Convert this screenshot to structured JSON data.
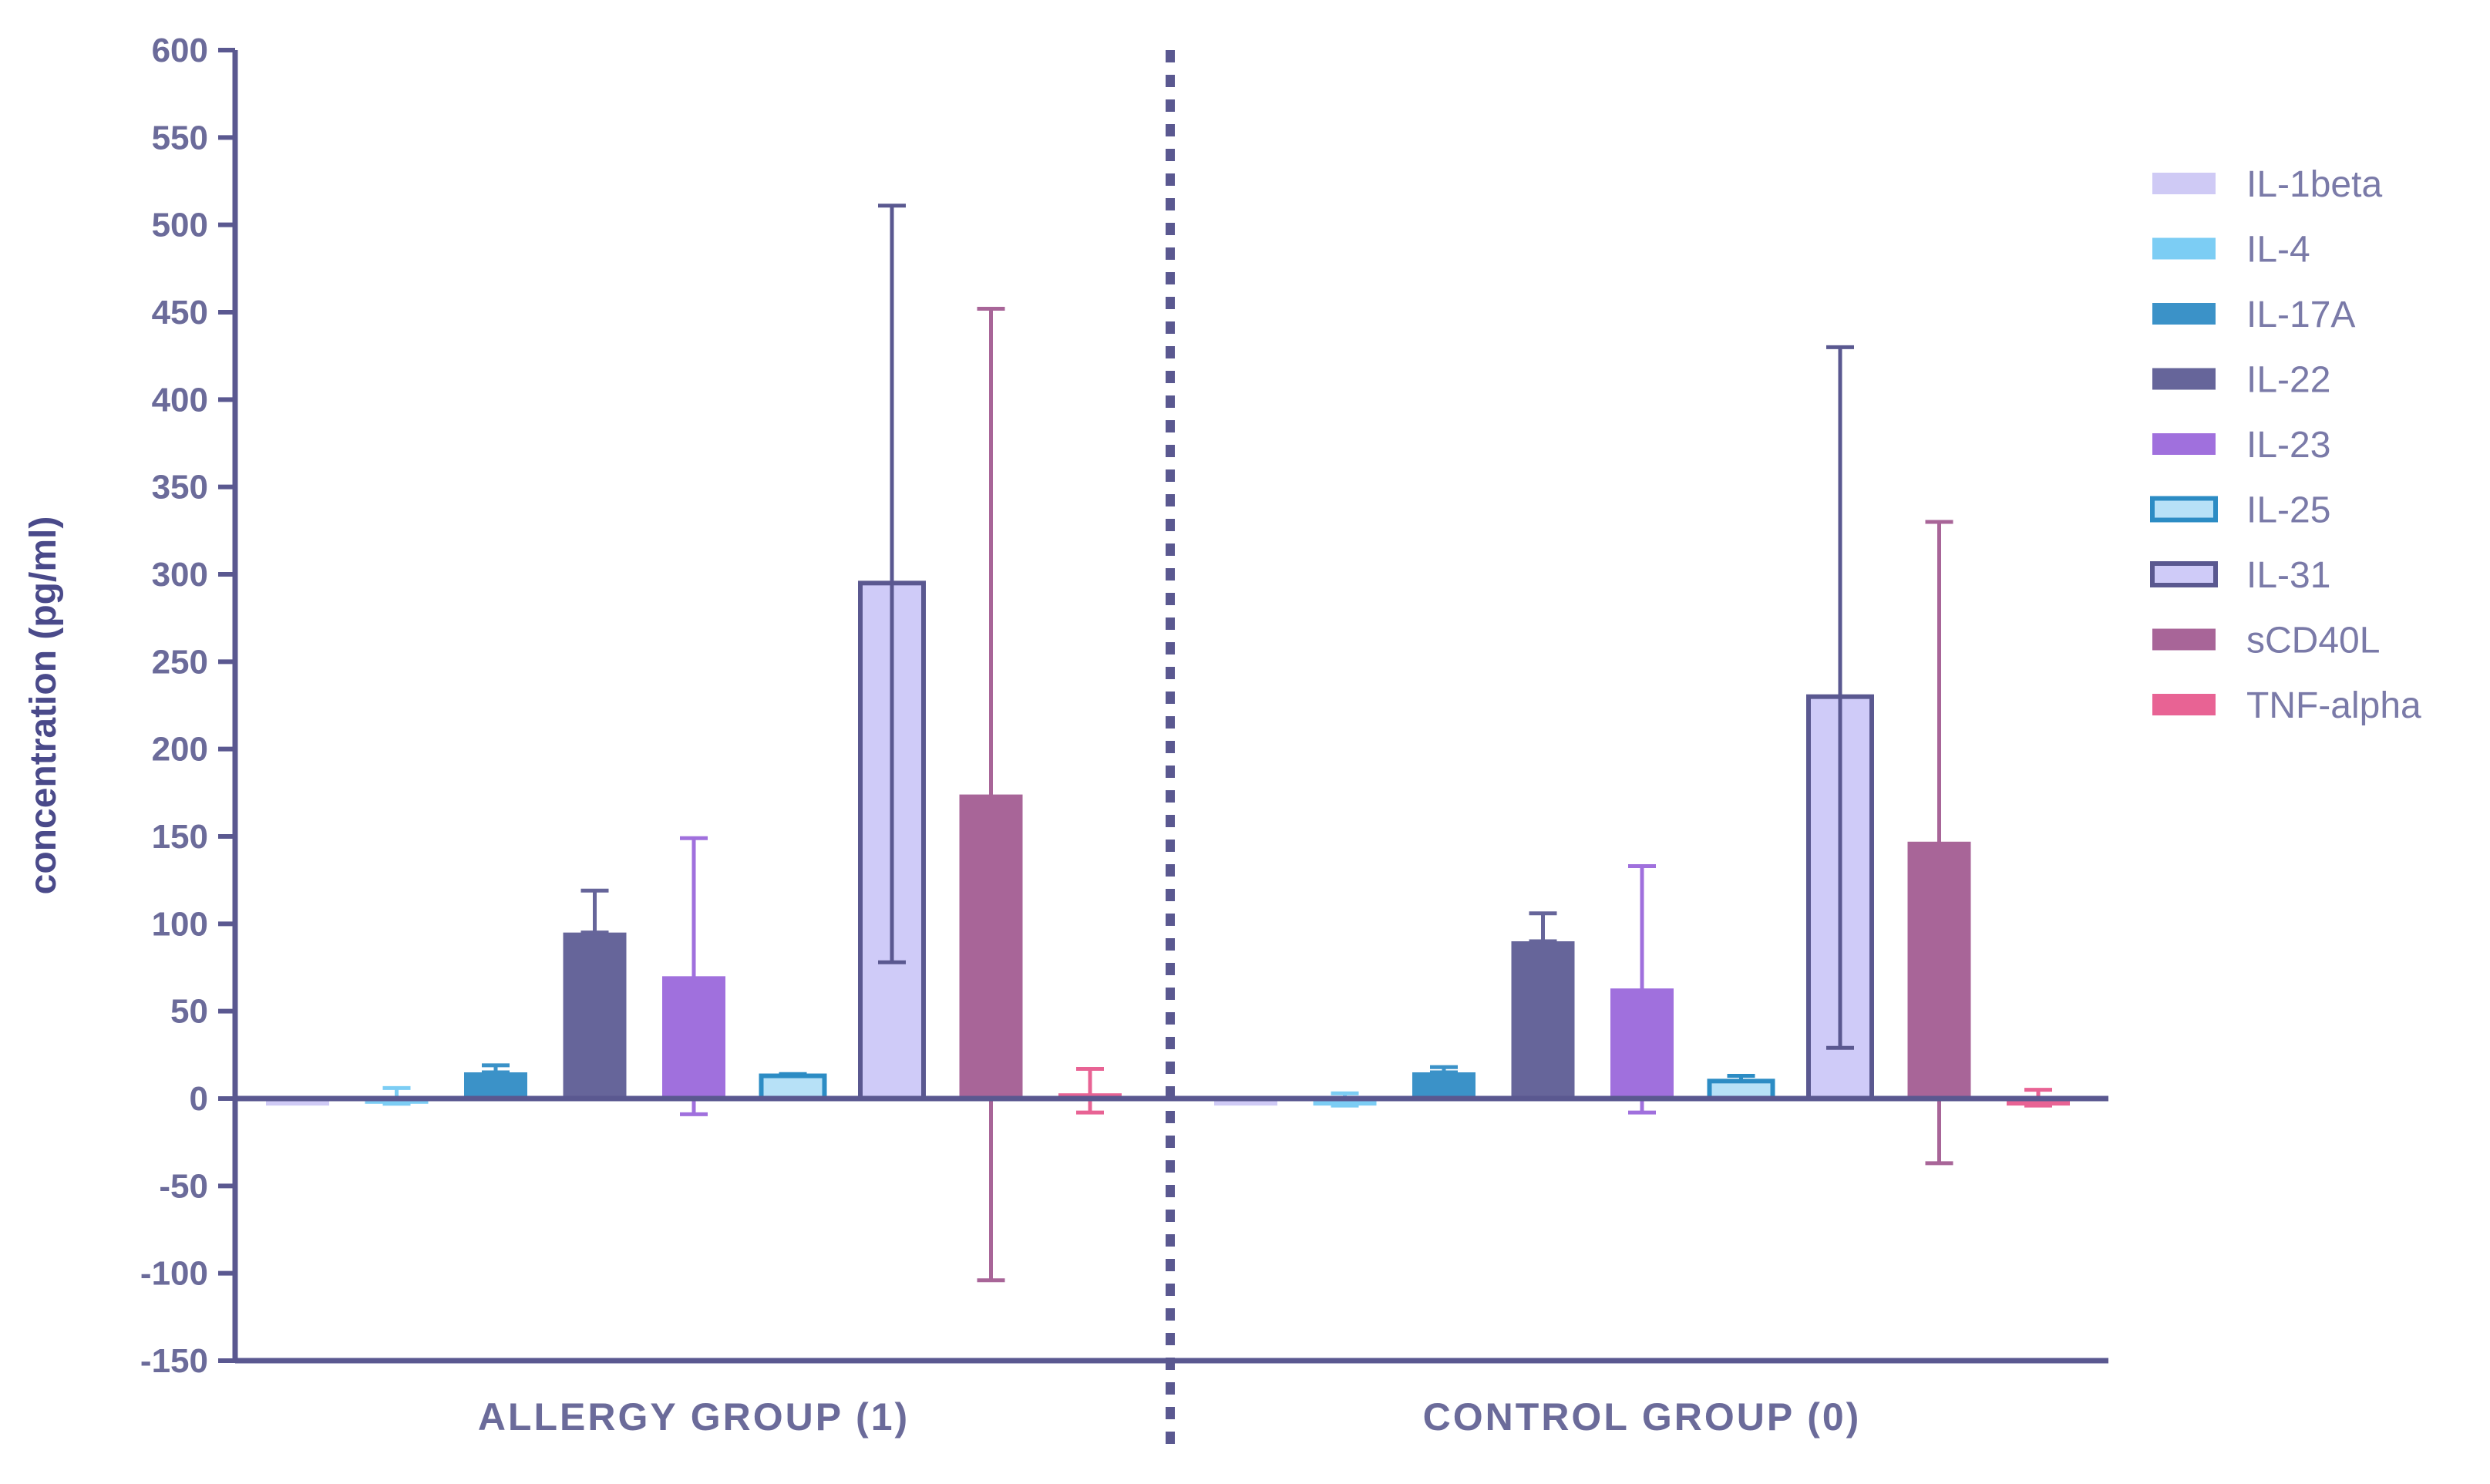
{
  "chart_data": {
    "type": "bar",
    "title": "",
    "xlabel": "",
    "ylabel": "concentration (pg/ml)",
    "ylim": [
      -150,
      600
    ],
    "yticks": [
      600,
      550,
      500,
      450,
      400,
      350,
      300,
      250,
      200,
      150,
      100,
      50,
      0,
      -50,
      -100,
      -150
    ],
    "grid": false,
    "legend_position": "right",
    "categories": [
      "ALLERGY GROUP (1)",
      "CONTROL GROUP (0)"
    ],
    "series": [
      {
        "name": "IL-1beta",
        "color": "#cfcaf5",
        "edge": "#cfcaf5",
        "style": "solid",
        "values": [
          -4,
          -4
        ],
        "error_low": [
          -4,
          -4
        ],
        "error_high": [
          -4,
          -4
        ]
      },
      {
        "name": "IL-4",
        "color": "#7ccdf4",
        "edge": "#7ccdf4",
        "style": "solid",
        "values": [
          -3,
          -4
        ],
        "error_low": [
          -3,
          -4
        ],
        "error_high": [
          6,
          3
        ]
      },
      {
        "name": "IL-17A",
        "color": "#3b92c8",
        "edge": "#3b92c8",
        "style": "solid",
        "values": [
          15,
          15
        ],
        "error_low": [
          15,
          15
        ],
        "error_high": [
          19,
          18
        ]
      },
      {
        "name": "IL-22",
        "color": "#66659a",
        "edge": "#66659a",
        "style": "solid",
        "values": [
          95,
          90
        ],
        "error_low": [
          95,
          90
        ],
        "error_high": [
          119,
          106
        ]
      },
      {
        "name": "IL-23",
        "color": "#a070dd",
        "edge": "#a070dd",
        "style": "solid",
        "values": [
          70,
          63
        ],
        "error_low": [
          -9,
          -8
        ],
        "error_high": [
          149,
          133
        ]
      },
      {
        "name": "IL-25",
        "color": "#b7e1f7",
        "edge": "#2c8cc4",
        "style": "outline",
        "values": [
          13,
          10
        ],
        "error_low": [
          13,
          10
        ],
        "error_high": [
          14,
          13
        ]
      },
      {
        "name": "IL-31",
        "color": "#cfcbf8",
        "edge": "#5a5890",
        "style": "outline",
        "values": [
          295,
          230
        ],
        "error_low": [
          78,
          29
        ],
        "error_high": [
          511,
          430
        ]
      },
      {
        "name": "sCD40L",
        "color": "#a86598",
        "edge": "#a86598",
        "style": "solid",
        "values": [
          174,
          147
        ],
        "error_low": [
          -104,
          -37
        ],
        "error_high": [
          452,
          330
        ]
      },
      {
        "name": "TNF-alpha",
        "color": "#e86394",
        "edge": "#e86394",
        "style": "solid",
        "values": [
          3,
          -4
        ],
        "error_low": [
          -8,
          -4
        ],
        "error_high": [
          17,
          5
        ]
      }
    ]
  }
}
